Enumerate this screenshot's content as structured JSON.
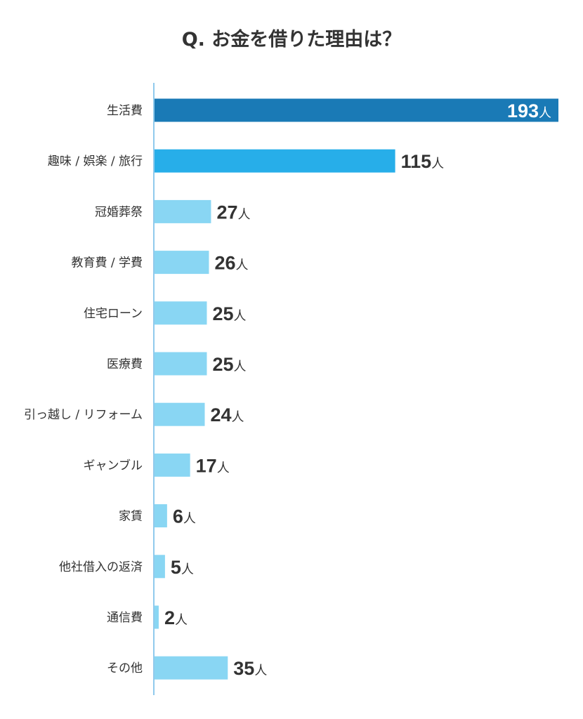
{
  "chart_data": {
    "type": "bar",
    "orientation": "horizontal",
    "title": "Q. お金を借りた理由は？",
    "unit": "人",
    "categories": [
      "生活費",
      "趣味 / 娯楽 / 旅行",
      "冠婚葬祭",
      "教育費 / 学費",
      "住宅ローン",
      "医療費",
      "引っ越し / リフォーム",
      "ギャンブル",
      "家賃",
      "他社借入の返済",
      "通信費",
      "その他"
    ],
    "values": [
      193,
      115,
      27,
      26,
      25,
      25,
      24,
      17,
      6,
      5,
      2,
      35
    ],
    "xlim": [
      0,
      193
    ],
    "grid": false,
    "colors": {
      "first": "#1a7ab6",
      "second": "#27aee9",
      "rest": "#89d6f3",
      "axis": "#6bb8e6"
    }
  }
}
